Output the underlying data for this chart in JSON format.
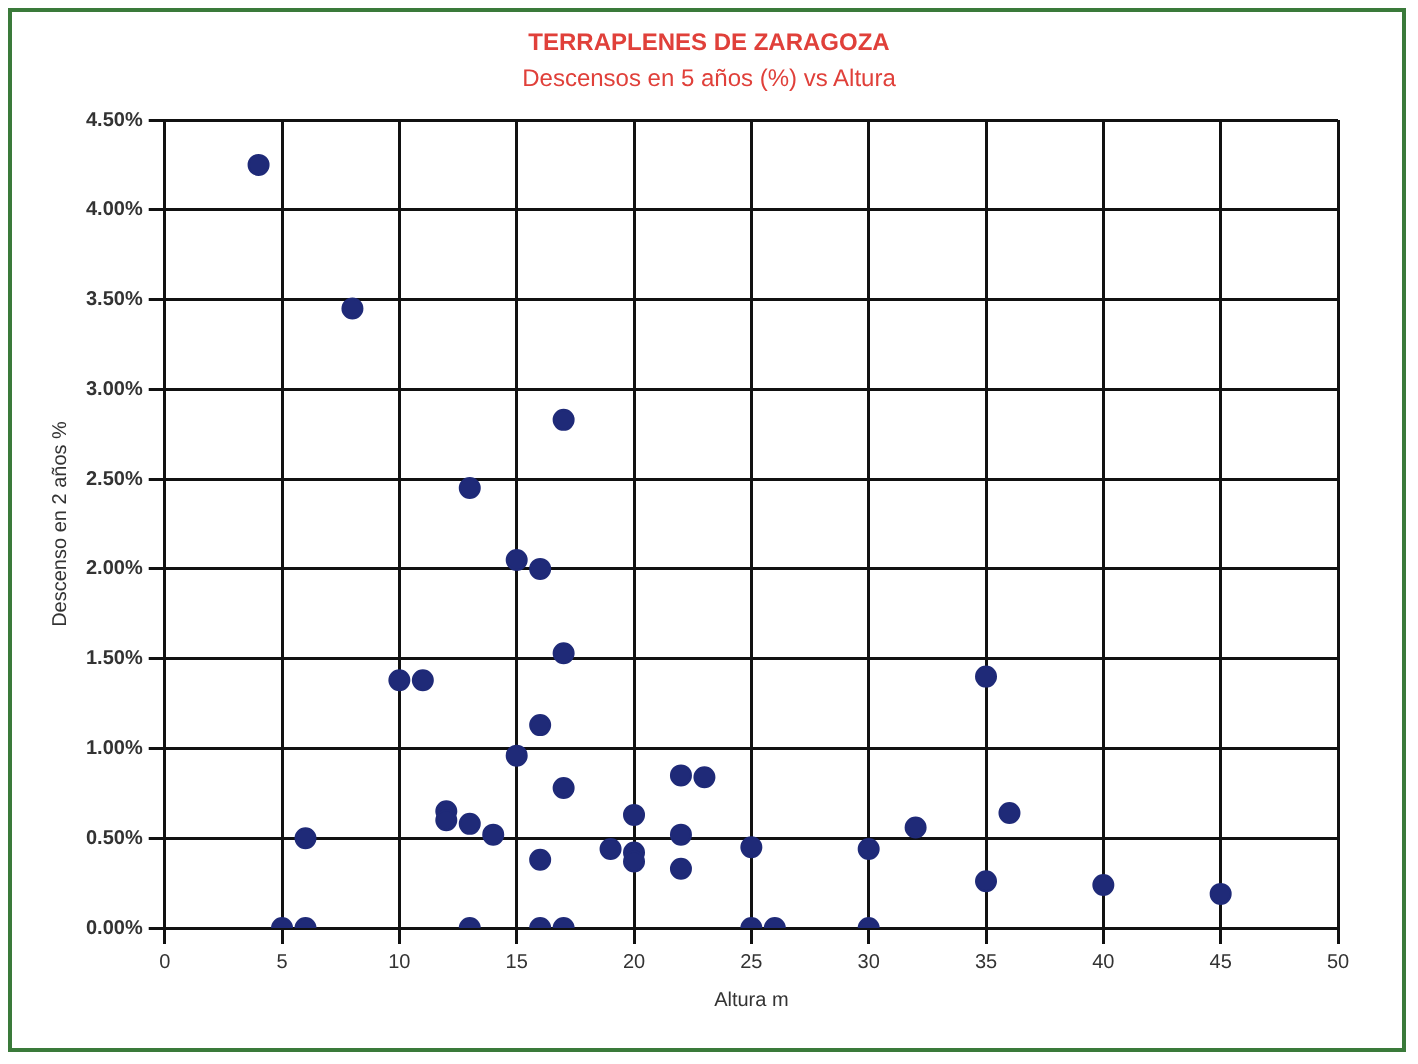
{
  "chart_data": {
    "type": "scatter",
    "title": "TERRAPLENES DE ZARAGOZA",
    "subtitle": "Descensos en 5 años (%) vs Altura",
    "xlabel": "Altura m",
    "ylabel": "Descenso en 2 años %",
    "series": [
      {
        "color": "#1f2a78",
        "x": [
          4,
          8,
          17,
          13,
          15,
          16,
          17,
          10,
          11,
          16,
          15,
          17,
          12,
          12,
          13,
          14,
          6,
          16,
          20,
          19,
          20,
          20,
          22,
          23,
          22,
          22,
          25,
          30,
          32,
          35,
          36,
          35,
          40,
          45,
          5,
          6,
          13,
          16,
          17,
          25,
          26,
          30
        ],
        "values": [
          4.25,
          3.45,
          2.83,
          2.45,
          2.05,
          2.0,
          1.53,
          1.38,
          1.38,
          1.13,
          0.96,
          0.78,
          0.65,
          0.6,
          0.58,
          0.52,
          0.5,
          0.38,
          0.63,
          0.44,
          0.42,
          0.37,
          0.85,
          0.84,
          0.52,
          0.33,
          0.45,
          0.44,
          0.56,
          1.4,
          0.64,
          0.26,
          0.24,
          0.19,
          0,
          0,
          0,
          0,
          0,
          0,
          0,
          0
        ]
      }
    ],
    "xlim": [
      0,
      50
    ],
    "xticks": [
      0,
      5,
      10,
      15,
      20,
      25,
      30,
      35,
      40,
      45,
      50
    ],
    "ylim": [
      0,
      4.5
    ],
    "yticks": [
      {
        "value": 0,
        "label": "0.00%"
      },
      {
        "value": 0.5,
        "label": "0.50%"
      },
      {
        "value": 1,
        "label": "1.00%"
      },
      {
        "value": 1.5,
        "label": "1.50%"
      },
      {
        "value": 2,
        "label": "2.00%"
      },
      {
        "value": 2.5,
        "label": "2.50%"
      },
      {
        "value": 3,
        "label": "3.00%"
      },
      {
        "value": 3.5,
        "label": "3.50%"
      },
      {
        "value": 4,
        "label": "4.00%"
      },
      {
        "value": 4.5,
        "label": "4.50%"
      }
    ],
    "grid": true,
    "legend": false,
    "marker": "circle"
  }
}
